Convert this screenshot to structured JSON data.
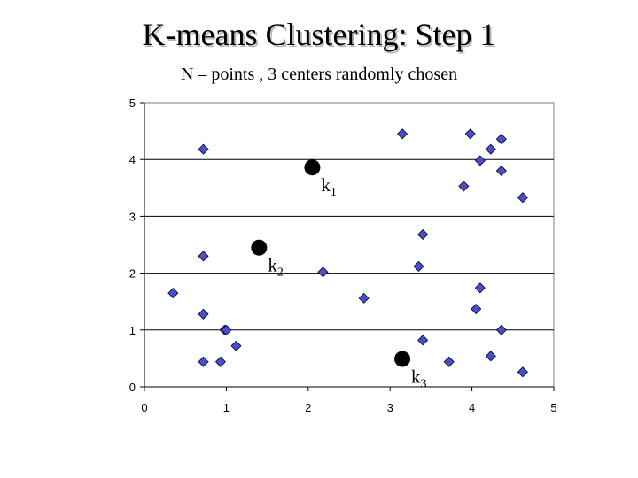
{
  "title": "K-means Clustering: Step 1",
  "subtitle": "N – points , 3 centers randomly chosen",
  "colors": {
    "point_fill": "#4a4fc4",
    "point_stroke": "#000033",
    "center_fill": "#000000",
    "gridline": "#000000",
    "plot_border": "#808080"
  },
  "chart_data": {
    "type": "scatter",
    "title": "",
    "xlabel": "",
    "ylabel": "",
    "xlim": [
      0,
      5
    ],
    "ylim": [
      0,
      5
    ],
    "x_ticks": [
      "0",
      "1",
      "2",
      "3",
      "4",
      "5"
    ],
    "y_ticks": [
      "0",
      "1",
      "2",
      "3",
      "4",
      "5"
    ],
    "grid": "horizontal",
    "legend": "none",
    "series": [
      {
        "marker": "diamond",
        "points": [
          {
            "x": 0.35,
            "y": 1.65
          },
          {
            "x": 0.72,
            "y": 4.18
          },
          {
            "x": 0.72,
            "y": 2.3
          },
          {
            "x": 0.72,
            "y": 1.28
          },
          {
            "x": 0.72,
            "y": 0.44
          },
          {
            "x": 0.93,
            "y": 0.44
          },
          {
            "x": 0.98,
            "y": 1.0
          },
          {
            "x": 1.0,
            "y": 1.0
          },
          {
            "x": 1.12,
            "y": 0.72
          },
          {
            "x": 2.18,
            "y": 2.02
          },
          {
            "x": 2.68,
            "y": 1.56
          },
          {
            "x": 3.15,
            "y": 4.45
          },
          {
            "x": 3.35,
            "y": 2.12
          },
          {
            "x": 3.4,
            "y": 2.68
          },
          {
            "x": 3.4,
            "y": 0.82
          },
          {
            "x": 3.72,
            "y": 0.44
          },
          {
            "x": 3.9,
            "y": 3.53
          },
          {
            "x": 3.98,
            "y": 4.45
          },
          {
            "x": 4.05,
            "y": 1.37
          },
          {
            "x": 4.1,
            "y": 3.98
          },
          {
            "x": 4.1,
            "y": 1.74
          },
          {
            "x": 4.23,
            "y": 4.18
          },
          {
            "x": 4.23,
            "y": 0.54
          },
          {
            "x": 4.36,
            "y": 4.36
          },
          {
            "x": 4.36,
            "y": 3.8
          },
          {
            "x": 4.36,
            "y": 1.0
          },
          {
            "x": 4.62,
            "y": 3.33
          },
          {
            "x": 4.62,
            "y": 0.26
          }
        ]
      }
    ],
    "centers": [
      {
        "label": "k",
        "sub": "1",
        "x": 2.05,
        "y": 3.86
      },
      {
        "label": "k",
        "sub": "2",
        "x": 1.4,
        "y": 2.45
      },
      {
        "label": "k",
        "sub": "3",
        "x": 3.15,
        "y": 0.49
      }
    ]
  }
}
